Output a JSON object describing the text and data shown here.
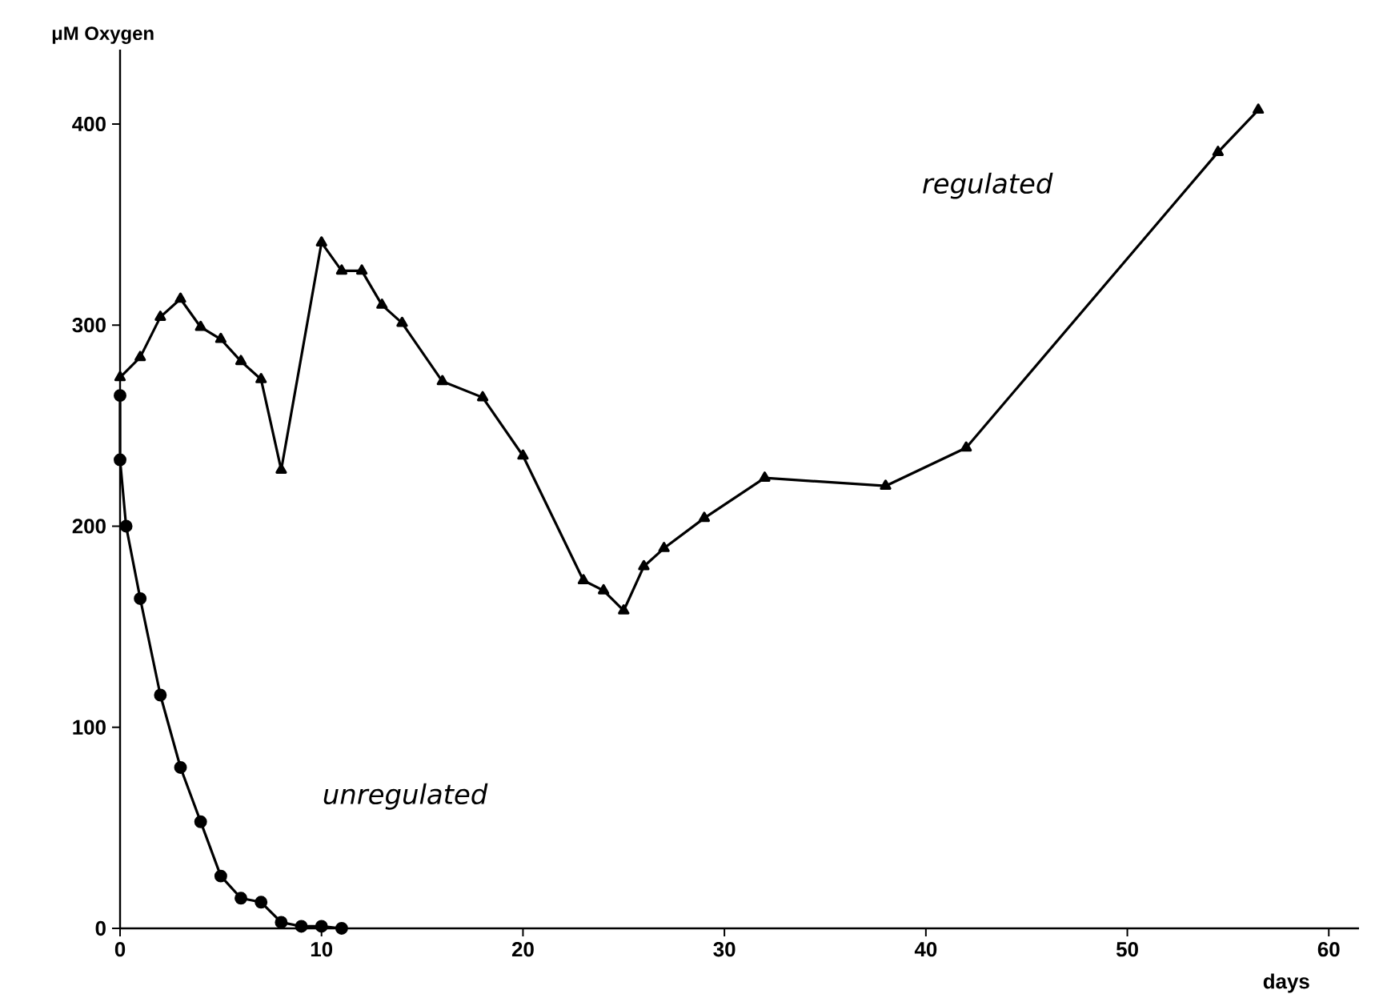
{
  "chart_data": {
    "type": "line",
    "xlabel": "days",
    "ylabel": "μM Oxygen",
    "xlim": [
      0,
      61.5
    ],
    "ylim": [
      0,
      437
    ],
    "xticks": [
      0,
      10,
      20,
      30,
      40,
      50,
      60
    ],
    "yticks": [
      0,
      100,
      200,
      300,
      400
    ],
    "grid": false,
    "line_style": "solid",
    "series": [
      {
        "color": "#000000",
        "marker": "triangle",
        "x": [
          0,
          1,
          2,
          3,
          4,
          5,
          6,
          7,
          8,
          10,
          11,
          12,
          13,
          14,
          16,
          18,
          20,
          23,
          24,
          25,
          26,
          27,
          29,
          32,
          38,
          42,
          54.5,
          56.5
        ],
        "values": [
          274,
          284,
          304,
          313,
          299,
          293,
          282,
          273,
          228,
          341,
          327,
          327,
          310,
          301,
          272,
          264,
          235,
          173,
          168,
          158,
          180,
          189,
          204,
          224,
          220,
          239,
          386,
          407
        ]
      },
      {
        "color": "#000000",
        "marker": "circle",
        "x": [
          0,
          0,
          0.3,
          1,
          2,
          3,
          4,
          5,
          6,
          7,
          8,
          9,
          10,
          11
        ],
        "values": [
          265,
          233,
          200,
          164,
          116,
          80,
          53,
          26,
          15,
          13,
          3,
          1,
          1,
          0
        ]
      }
    ],
    "annotations": [
      "regulated",
      "unregulated"
    ]
  }
}
